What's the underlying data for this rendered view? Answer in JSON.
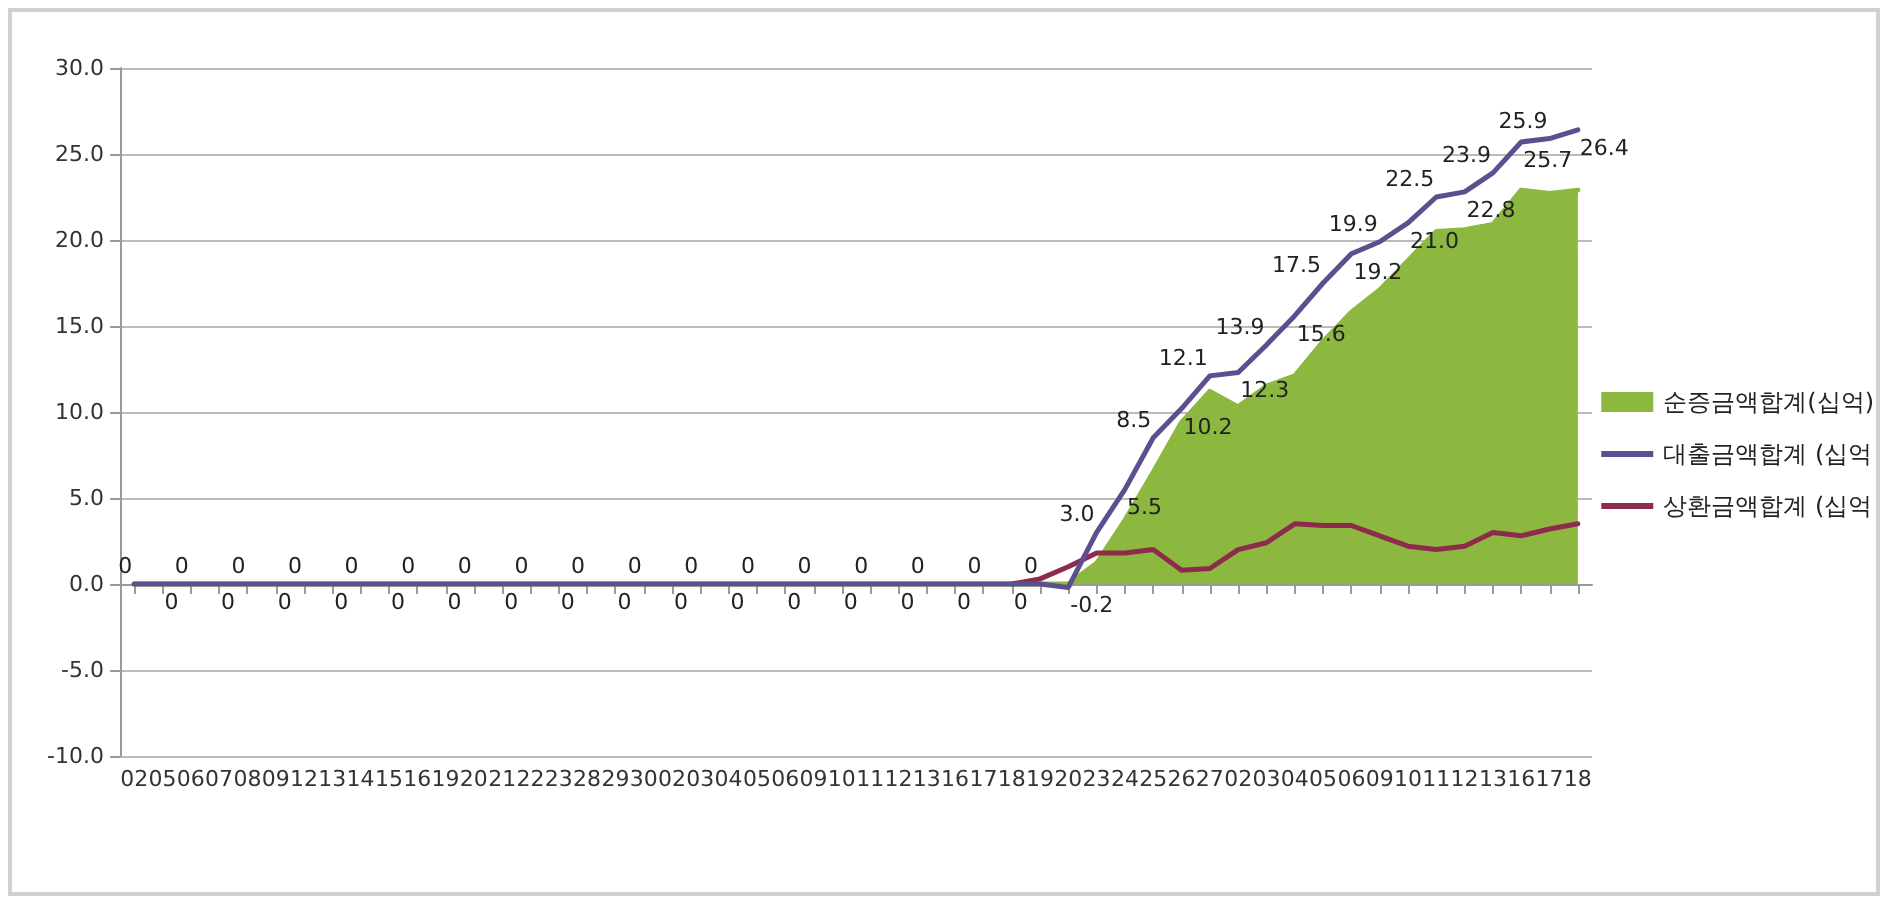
{
  "chart_data": {
    "type": "line",
    "categories": [
      "02",
      "05",
      "06",
      "07",
      "08",
      "09",
      "12",
      "13",
      "14",
      "15",
      "16",
      "19",
      "20",
      "21",
      "22",
      "23",
      "28",
      "29",
      "30",
      "02",
      "03",
      "04",
      "05",
      "06",
      "09",
      "10",
      "11",
      "12",
      "13",
      "16",
      "17",
      "18",
      "19",
      "20",
      "23",
      "24",
      "25",
      "26",
      "27",
      "02",
      "03",
      "04",
      "05",
      "06",
      "09",
      "10",
      "11",
      "12",
      "13",
      "16",
      "17",
      "18"
    ],
    "series": [
      {
        "name": "순증금액합계(십억)",
        "type": "area",
        "color": "#8cb840",
        "values": [
          0,
          0,
          0,
          0,
          0,
          0,
          0,
          0,
          0,
          0,
          0,
          0,
          0,
          0,
          0,
          0,
          0,
          0,
          0,
          0,
          0,
          0,
          0,
          0,
          0,
          0,
          0,
          0,
          0,
          0,
          0,
          0,
          0,
          0,
          1.2,
          3.7,
          6.5,
          9.4,
          11.2,
          10.3,
          11.5,
          12.1,
          14.1,
          15.8,
          17.1,
          18.8,
          20.5,
          20.6,
          20.9,
          22.9,
          22.7,
          22.9
        ]
      },
      {
        "name": "대출금액합계 (십억",
        "type": "line",
        "color": "#5b4f8f",
        "values": [
          0,
          0,
          0,
          0,
          0,
          0,
          0,
          0,
          0,
          0,
          0,
          0,
          0,
          0,
          0,
          0,
          0,
          0,
          0,
          0,
          0,
          0,
          0,
          0,
          0,
          0,
          0,
          0,
          0,
          0,
          0,
          0,
          0,
          -0.2,
          3.0,
          5.5,
          8.5,
          10.2,
          12.1,
          12.3,
          13.9,
          15.6,
          17.5,
          19.2,
          19.9,
          21.0,
          22.5,
          22.8,
          23.9,
          25.7,
          25.9,
          26.4
        ],
        "value_labels": [
          "0",
          "0",
          "0",
          "0",
          "0",
          "0",
          "0",
          "0",
          "0",
          "0",
          "0",
          "0",
          "0",
          "0",
          "0",
          "0",
          "0",
          "0",
          "0",
          "0",
          "0",
          "0",
          "0",
          "0",
          "0",
          "0",
          "0",
          "0",
          "0",
          "0",
          "0",
          "0",
          "0",
          "-0.2",
          "3.0",
          "5.5",
          "8.5",
          "10.2",
          "12.1",
          "12.3",
          "13.9",
          "15.6",
          "17.5",
          "19.2",
          "19.9",
          "21.0",
          "22.5",
          "22.8",
          "23.9",
          "25.7",
          "25.9",
          "26.4"
        ]
      },
      {
        "name": "상환금액합계 (십억",
        "type": "line",
        "color": "#8e2a4c",
        "values": [
          null,
          null,
          null,
          null,
          null,
          null,
          null,
          null,
          null,
          null,
          null,
          null,
          null,
          null,
          null,
          null,
          null,
          null,
          null,
          null,
          null,
          null,
          null,
          null,
          null,
          null,
          null,
          null,
          null,
          null,
          null,
          0,
          0.3,
          1.0,
          1.8,
          1.8,
          2.0,
          0.8,
          0.9,
          2.0,
          2.4,
          3.5,
          3.4,
          3.4,
          2.8,
          2.2,
          2.0,
          2.2,
          3.0,
          2.8,
          3.2,
          3.5
        ]
      }
    ],
    "ylim": [
      -10,
      30
    ],
    "yticks": [
      {
        "value": -10,
        "label": "-10.0"
      },
      {
        "value": -5,
        "label": "-5.0"
      },
      {
        "value": 0,
        "label": "0.0"
      },
      {
        "value": 5,
        "label": "5.0"
      },
      {
        "value": 10,
        "label": "10.0"
      },
      {
        "value": 15,
        "label": "15.0"
      },
      {
        "value": 20,
        "label": "20.0"
      },
      {
        "value": 25,
        "label": "25.0"
      },
      {
        "value": 30,
        "label": "30.0"
      }
    ],
    "grid": "y",
    "legend": "right",
    "marker": "none",
    "line_style": "solid"
  }
}
